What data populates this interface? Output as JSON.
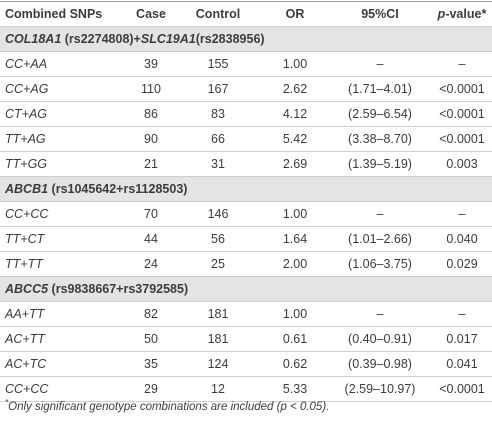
{
  "table": {
    "header": [
      "Combined SNPs",
      "Case",
      "Control",
      "OR",
      "95%CI",
      [
        "p",
        "-value*"
      ]
    ],
    "sections": [
      {
        "title": [
          "COL18A1",
          " (rs2274808)+",
          "SLC19A1",
          "(rs2838956)"
        ],
        "rows": [
          [
            "CC+AA",
            "39",
            "155",
            "1.00",
            "–",
            "–"
          ],
          [
            "CC+AG",
            "110",
            "167",
            "2.62",
            "(1.71–4.01)",
            "<0.0001"
          ],
          [
            "CT+AG",
            "86",
            "83",
            "4.12",
            "(2.59–6.54)",
            "<0.0001"
          ],
          [
            "TT+AG",
            "90",
            "66",
            "5.42",
            "(3.38–8.70)",
            "<0.0001"
          ],
          [
            "TT+GG",
            "21",
            "31",
            "2.69",
            "(1.39–5.19)",
            "0.003"
          ]
        ]
      },
      {
        "title": [
          "ABCB1",
          " (rs1045642+rs1128503)"
        ],
        "rows": [
          [
            "CC+CC",
            "70",
            "146",
            "1.00",
            "–",
            "–"
          ],
          [
            "TT+CT",
            "44",
            "56",
            "1.64",
            "(1.01–2.66)",
            "0.040"
          ],
          [
            "TT+TT",
            "24",
            "25",
            "2.00",
            "(1.06–3.75)",
            "0.029"
          ]
        ]
      },
      {
        "title": [
          "ABCC5",
          " (rs9838667+rs3792585)"
        ],
        "rows": [
          [
            "AA+TT",
            "82",
            "181",
            "1.00",
            "–",
            "–"
          ],
          [
            "AC+TT",
            "50",
            "181",
            "0.61",
            "(0.40–0.91)",
            "0.017"
          ],
          [
            "AC+TC",
            "35",
            "124",
            "0.62",
            "(0.39–0.98)",
            "0.041"
          ],
          [
            "CC+CC",
            "29",
            "12",
            "5.33",
            "(2.59–10.97)",
            "<0.0001"
          ]
        ]
      }
    ],
    "footnote": [
      "*",
      "Only significant genotype combinations are included (p < 0.05)."
    ]
  }
}
